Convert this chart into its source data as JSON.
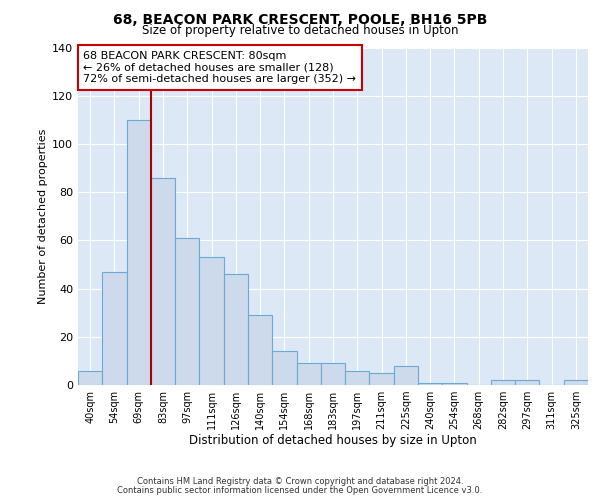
{
  "title": "68, BEACON PARK CRESCENT, POOLE, BH16 5PB",
  "subtitle": "Size of property relative to detached houses in Upton",
  "xlabel": "Distribution of detached houses by size in Upton",
  "ylabel": "Number of detached properties",
  "bar_labels": [
    "40sqm",
    "54sqm",
    "69sqm",
    "83sqm",
    "97sqm",
    "111sqm",
    "126sqm",
    "140sqm",
    "154sqm",
    "168sqm",
    "183sqm",
    "197sqm",
    "211sqm",
    "225sqm",
    "240sqm",
    "254sqm",
    "268sqm",
    "282sqm",
    "297sqm",
    "311sqm",
    "325sqm"
  ],
  "bar_heights": [
    6,
    47,
    110,
    86,
    61,
    53,
    46,
    29,
    14,
    9,
    9,
    6,
    5,
    8,
    1,
    1,
    0,
    2,
    2,
    0,
    2
  ],
  "bar_color": "#cddaeb",
  "bar_edge_color": "#6aaad4",
  "vline_color": "#aa0000",
  "ylim": [
    0,
    140
  ],
  "yticks": [
    0,
    20,
    40,
    60,
    80,
    100,
    120,
    140
  ],
  "annotation_title": "68 BEACON PARK CRESCENT: 80sqm",
  "annotation_line1": "← 26% of detached houses are smaller (128)",
  "annotation_line2": "72% of semi-detached houses are larger (352) →",
  "annotation_box_color": "#ffffff",
  "annotation_box_edge": "#cc0000",
  "footnote1": "Contains HM Land Registry data © Crown copyright and database right 2024.",
  "footnote2": "Contains public sector information licensed under the Open Government Licence v3.0.",
  "background_color": "#dce8f5",
  "grid_color": "#c0d0e0",
  "title_fontsize": 10,
  "subtitle_fontsize": 8.5
}
